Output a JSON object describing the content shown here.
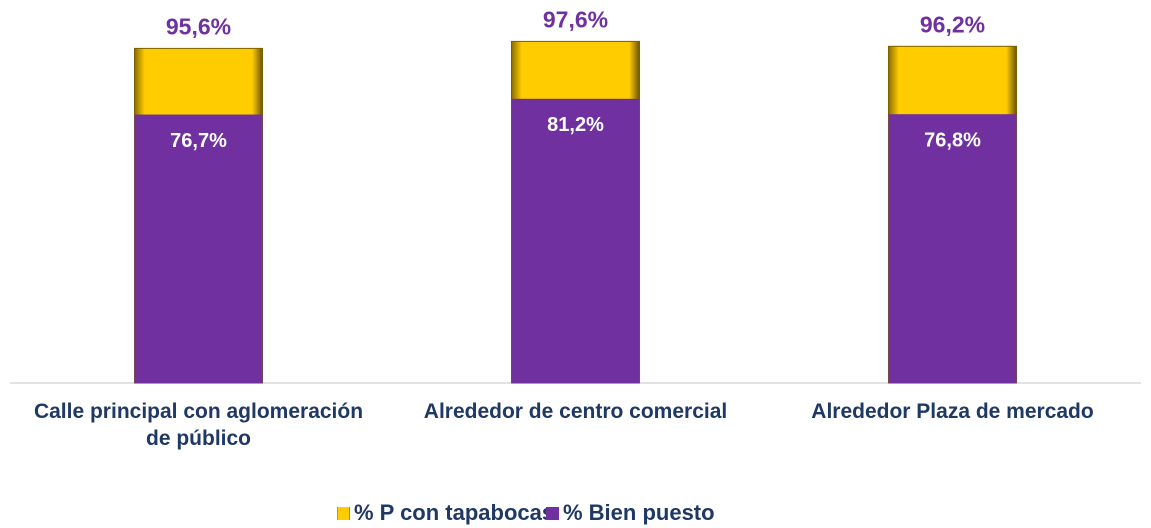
{
  "chart_data": {
    "type": "bar",
    "categories": [
      "Calle principal con aglomeración de público",
      "Alrededor de centro comercial",
      "Alrededor Plaza de mercado"
    ],
    "series": [
      {
        "name": "% P con tapabocas",
        "color": "#FFCC00",
        "values": [
          95.6,
          97.6,
          96.2
        ],
        "value_labels": [
          "95,6%",
          "97,6%",
          "96,2%"
        ]
      },
      {
        "name": "% Bien puesto",
        "color": "#7030A0",
        "values": [
          76.7,
          81.2,
          76.8
        ],
        "value_labels": [
          "76,7%",
          "81,2%",
          "76,8%"
        ]
      }
    ],
    "overlap": true,
    "ylim": [
      0,
      100
    ],
    "legend": "bottom"
  }
}
